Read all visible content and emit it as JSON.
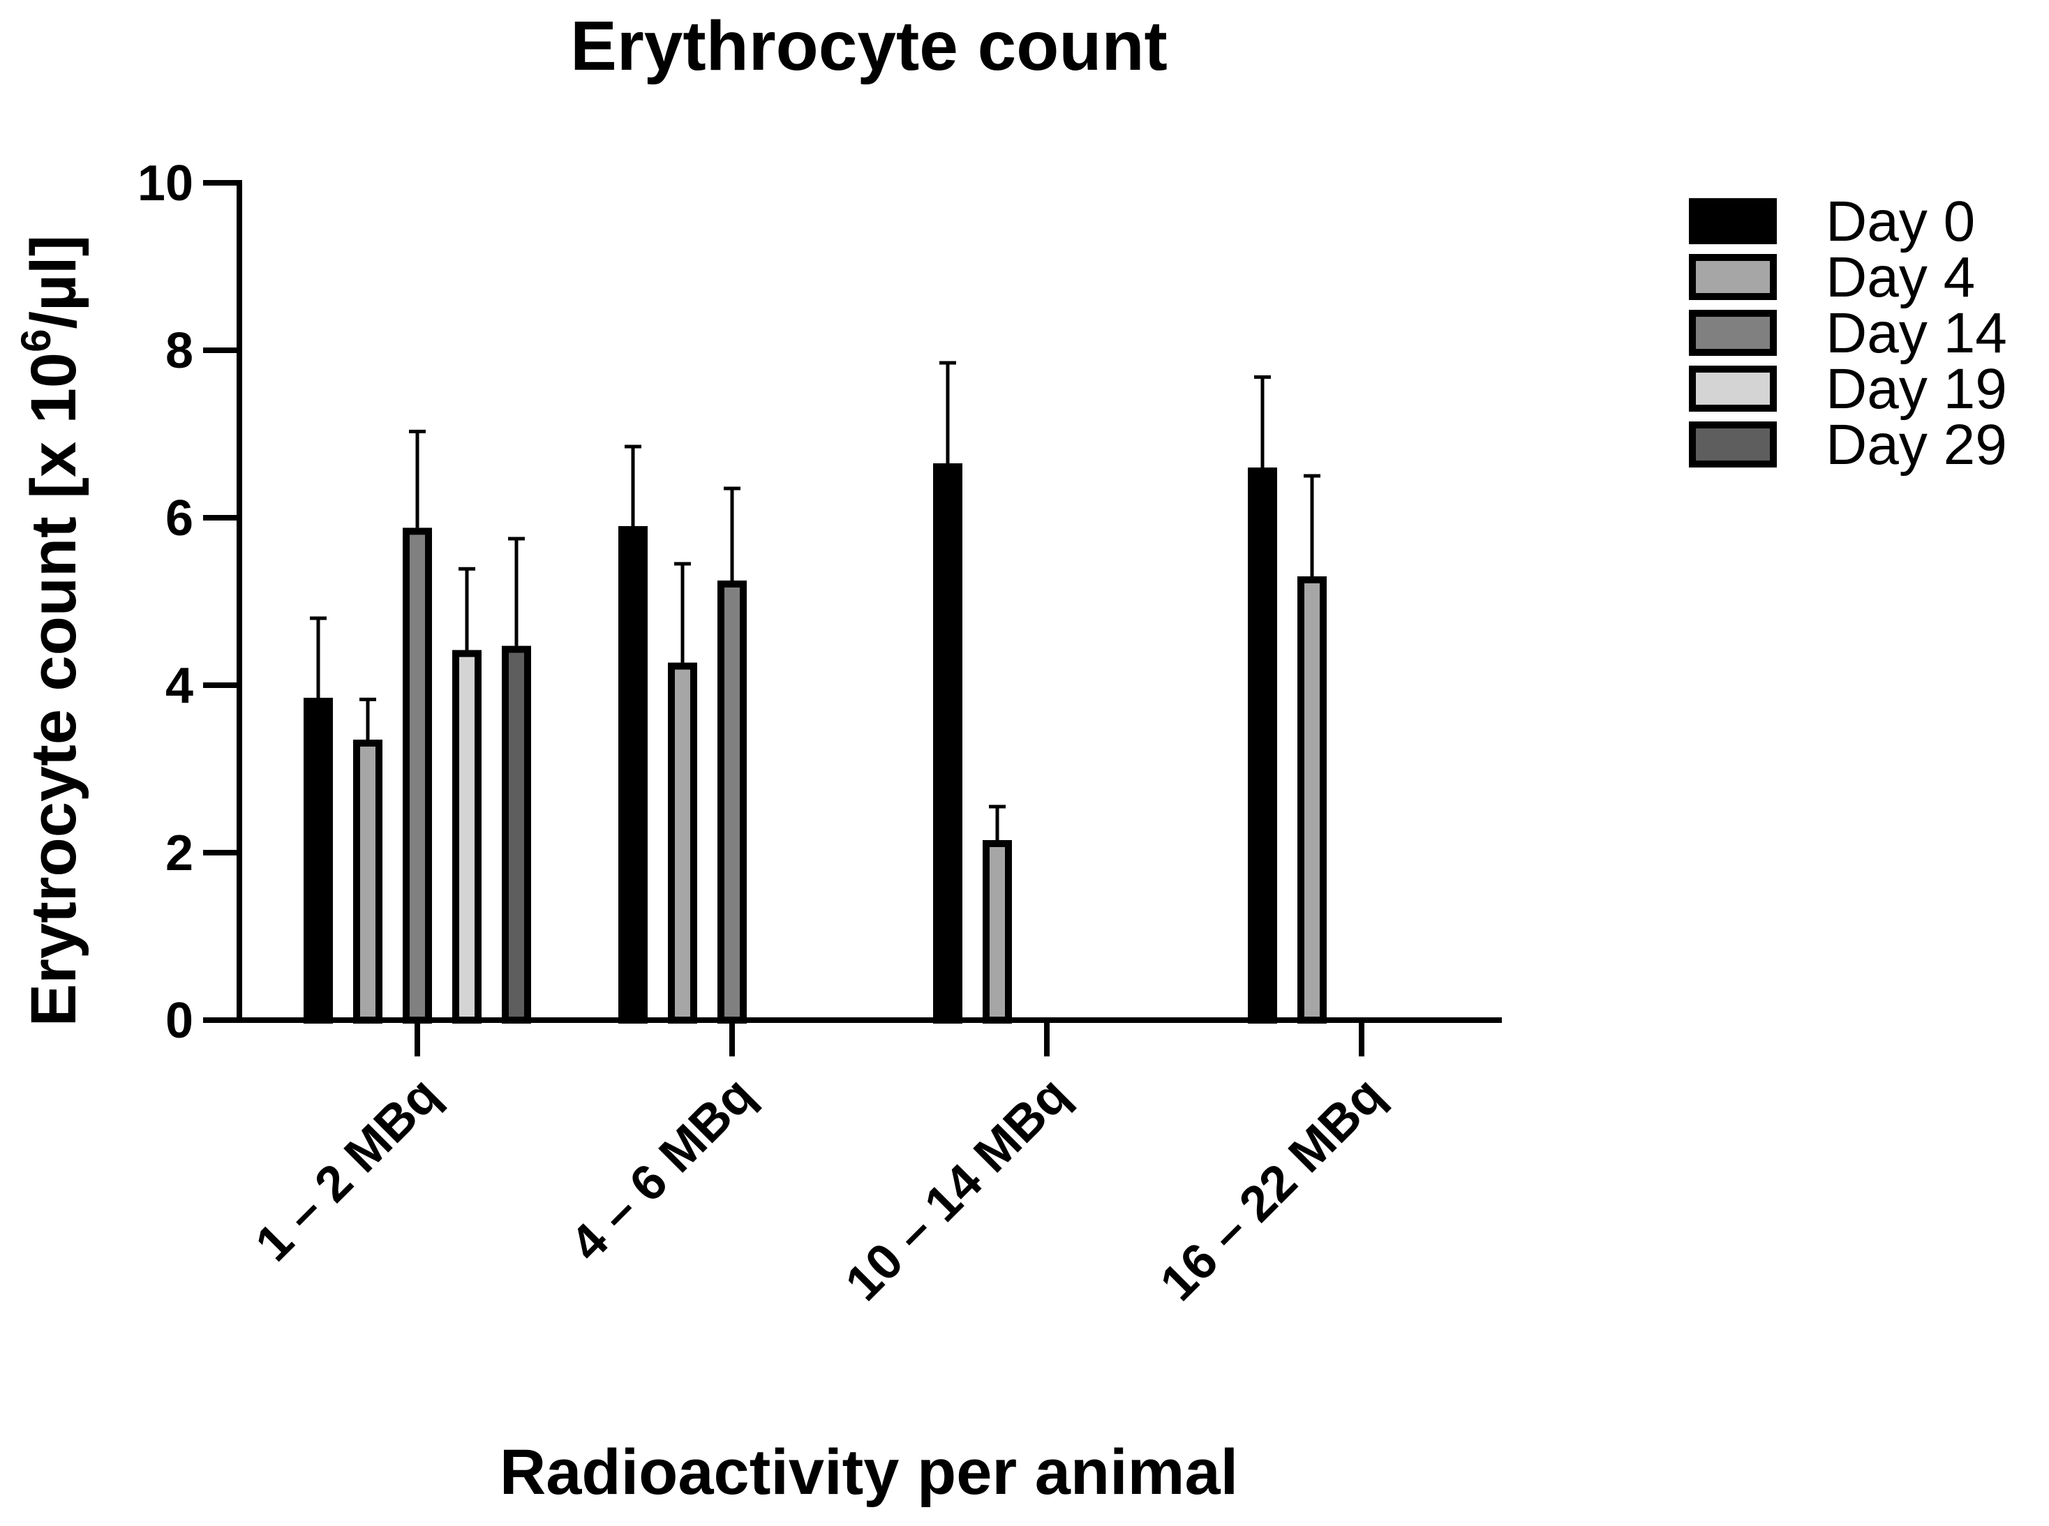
{
  "chart_data": {
    "type": "bar",
    "title": "Erythrocyte count",
    "xlabel": "Radioactivity per animal",
    "ylabel_main": "Erytrocyte count [x 10",
    "ylabel_sup": "6",
    "ylabel_tail": "/µl]",
    "ylim": [
      0,
      10
    ],
    "yticks": [
      "0",
      "2",
      "4",
      "6",
      "8",
      "10"
    ],
    "categories": [
      "1 – 2 MBq",
      "4 – 6 MBq",
      "10 – 14 MBq",
      "16 – 22 MBq"
    ],
    "series": [
      {
        "name": "Day 0",
        "color": "#000000",
        "values": [
          3.85,
          5.9,
          6.65,
          6.6
        ],
        "errors": [
          0.95,
          0.95,
          1.2,
          1.08
        ]
      },
      {
        "name": "Day 4",
        "color": "#a6a6a6",
        "values": [
          3.35,
          4.27,
          2.15,
          5.3
        ],
        "errors": [
          0.48,
          1.18,
          0.4,
          1.2
        ]
      },
      {
        "name": "Day 14",
        "color": "#808080",
        "values": [
          5.88,
          5.25,
          null,
          null
        ],
        "errors": [
          1.15,
          1.1,
          null,
          null
        ]
      },
      {
        "name": "Day 19",
        "color": "#d4d4d4",
        "values": [
          4.42,
          null,
          null,
          null
        ],
        "errors": [
          0.97,
          null,
          null,
          null
        ]
      },
      {
        "name": "Day 29",
        "color": "#5e5e5e",
        "values": [
          4.47,
          null,
          null,
          null
        ],
        "errors": [
          1.28,
          null,
          null,
          null
        ]
      }
    ],
    "legend_position": "right",
    "grid": false
  }
}
